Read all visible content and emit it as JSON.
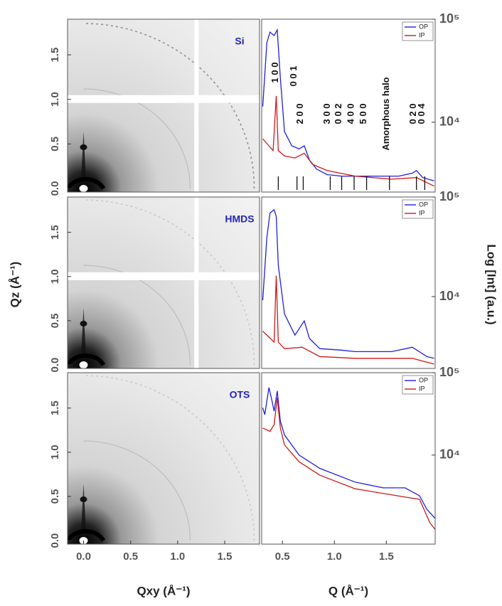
{
  "chart_data": [
    {
      "type": "image",
      "label": "Si",
      "xlim": [
        -0.17,
        1.87
      ],
      "ylim": [
        -0.04,
        1.9
      ],
      "yticks": [
        {
          "value": 0,
          "label": "0.0"
        },
        0.5,
        {
          "value": 1,
          "label": "1.0"
        },
        1.5
      ]
    },
    {
      "type": "line",
      "log_y": true,
      "xlim": [
        0.3,
        1.97
      ],
      "ylim": [
        2100,
        100000
      ],
      "yticks": [
        {
          "value": 10000,
          "label": "10⁴"
        },
        {
          "value": 100000,
          "label": "10⁵"
        }
      ],
      "series": [
        {
          "name": "OP",
          "color": "#1f1fe0",
          "x": [
            0.31,
            0.35,
            0.38,
            0.42,
            0.45,
            0.48,
            0.52,
            0.59,
            0.66,
            0.71,
            0.76,
            0.83,
            0.93,
            1.07,
            1.2,
            1.34,
            1.51,
            1.62,
            1.75,
            1.79,
            1.85,
            1.96
          ],
          "values": [
            14200,
            59200,
            75000,
            69400,
            78800,
            26800,
            8100,
            5900,
            5500,
            5900,
            4300,
            3500,
            3100,
            3000,
            3000,
            3000,
            3000,
            3000,
            3200,
            3400,
            2900,
            2700
          ]
        },
        {
          "name": "IP",
          "color": "#d01818",
          "x": [
            0.31,
            0.37,
            0.41,
            0.44,
            0.46,
            0.52,
            0.62,
            0.71,
            0.79,
            0.93,
            1.2,
            1.55,
            1.79,
            1.96
          ],
          "values": [
            6900,
            5900,
            5300,
            18000,
            5300,
            4700,
            4500,
            5000,
            3900,
            3400,
            3000,
            2800,
            2900,
            2400
          ]
        }
      ],
      "reflections": {
        "labels": [
          "1 0 0",
          "0 0 1",
          "2 0 0",
          "3 0 0",
          "0 0 2",
          "4 0 0",
          "5 0 0",
          "Amorphous halo",
          "0 2 0",
          "0 0 4"
        ],
        "q": [
          0.46,
          0.64,
          0.7,
          0.96,
          1.07,
          1.19,
          1.31,
          1.53,
          1.79,
          1.87
        ]
      }
    },
    {
      "type": "image",
      "label": "HMDS",
      "xlim": [
        -0.17,
        1.87
      ],
      "ylim": [
        -0.04,
        1.9
      ],
      "yticks": [
        {
          "value": 0,
          "label": "0.0"
        },
        0.5,
        {
          "value": 1,
          "label": "1.0"
        },
        1.5
      ],
      "y_label": "Qz (Å⁻¹)"
    },
    {
      "type": "line",
      "log_y": true,
      "xlim": [
        0.3,
        1.97
      ],
      "ylim": [
        1900,
        100000
      ],
      "yticks": [
        {
          "value": 10000,
          "label": "10⁴"
        },
        {
          "value": 100000,
          "label": "10⁵"
        }
      ],
      "y_label": "Log [Int] (a.u.)",
      "series": [
        {
          "name": "OP",
          "color": "#1f1fe0",
          "x": [
            0.31,
            0.35,
            0.38,
            0.42,
            0.44,
            0.46,
            0.52,
            0.62,
            0.71,
            0.76,
            0.86,
            1.07,
            1.2,
            1.55,
            1.75,
            1.89,
            1.96
          ],
          "values": [
            9200,
            39300,
            69000,
            74800,
            63700,
            20600,
            6700,
            4100,
            5700,
            3800,
            3000,
            2900,
            2800,
            2800,
            3100,
            2500,
            2400
          ]
        },
        {
          "name": "IP",
          "color": "#d01818",
          "x": [
            0.31,
            0.42,
            0.44,
            0.46,
            0.52,
            0.69,
            0.86,
            1.2,
            1.75,
            1.96
          ],
          "values": [
            4500,
            3500,
            16200,
            3500,
            3000,
            3100,
            2500,
            2400,
            2400,
            2100
          ]
        }
      ]
    },
    {
      "type": "image",
      "label": "OTS",
      "xlim": [
        -0.17,
        1.87
      ],
      "ylim": [
        -0.04,
        1.9
      ],
      "xticks": [
        {
          "value": 0,
          "label": "0.0"
        },
        0.5,
        {
          "value": 1,
          "label": "1.0"
        },
        1.5
      ],
      "yticks": [
        {
          "value": 0,
          "label": "0.0"
        },
        0.5,
        {
          "value": 1,
          "label": "1.0"
        },
        1.5
      ],
      "x_label": "Qxy (Å⁻¹)"
    },
    {
      "type": "line",
      "log_y": true,
      "xlim": [
        0.3,
        1.97
      ],
      "ylim": [
        830,
        100000
      ],
      "xticks": [
        0.5,
        {
          "value": 1,
          "label": "1.0"
        },
        1.5
      ],
      "yticks": [
        {
          "value": 10000,
          "label": "10⁴"
        },
        {
          "value": 100000,
          "label": "10⁵"
        }
      ],
      "x_label": "Q (Å⁻¹)",
      "series": [
        {
          "name": "OP",
          "color": "#1f1fe0",
          "x": [
            0.31,
            0.33,
            0.37,
            0.4,
            0.42,
            0.45,
            0.48,
            0.52,
            0.66,
            0.86,
            1.2,
            1.47,
            1.68,
            1.82,
            1.89,
            1.97
          ],
          "values": [
            37500,
            31000,
            66000,
            45300,
            34100,
            60100,
            25700,
            17600,
            10000,
            6900,
            4700,
            4000,
            4000,
            3200,
            2200,
            1700
          ]
        },
        {
          "name": "IP",
          "color": "#d01818",
          "x": [
            0.31,
            0.38,
            0.42,
            0.45,
            0.48,
            0.52,
            0.66,
            0.86,
            1.2,
            1.61,
            1.82,
            1.92,
            1.97
          ],
          "values": [
            21300,
            19400,
            23400,
            49800,
            21300,
            13300,
            8300,
            5700,
            3900,
            3200,
            2900,
            1500,
            1250
          ]
        }
      ]
    }
  ]
}
